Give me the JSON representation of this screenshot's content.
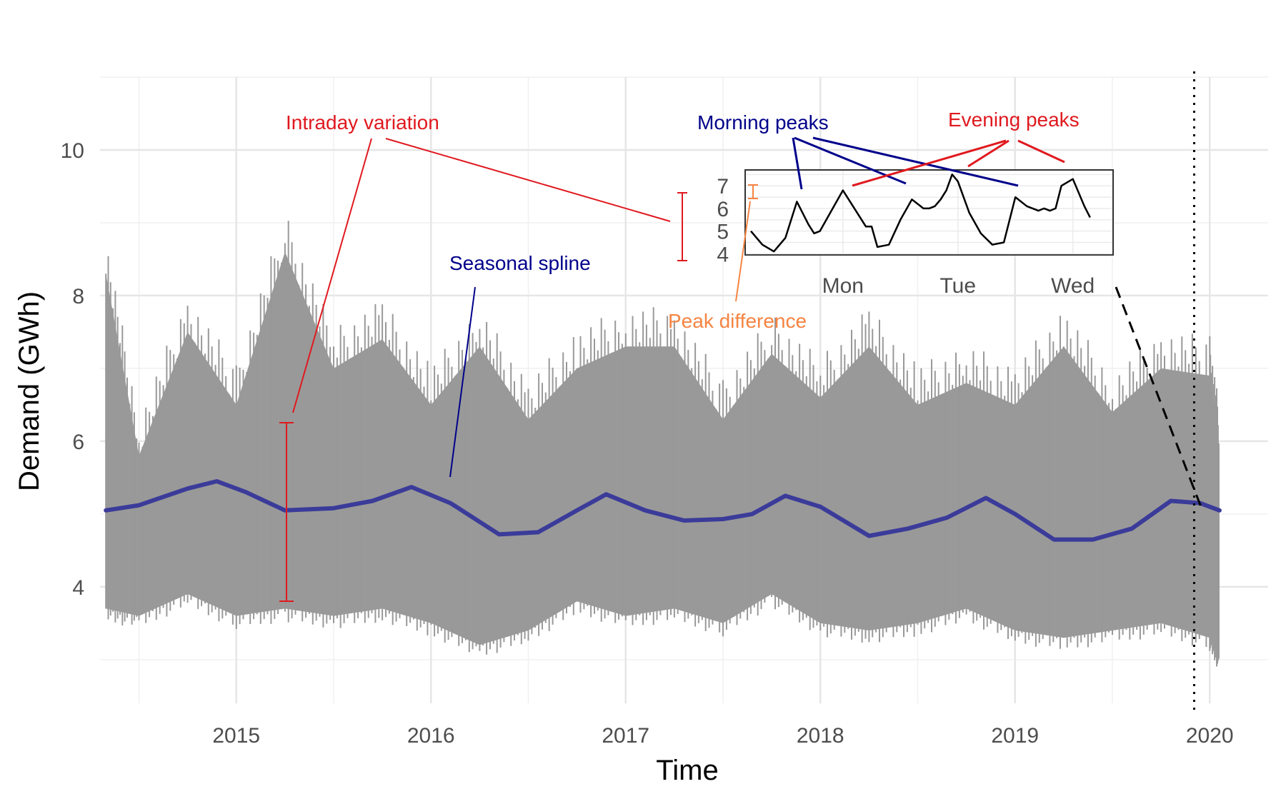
{
  "chart_data": {
    "type": "line",
    "title": "",
    "xlabel": "Time",
    "ylabel": "Demand (GWh)",
    "xlim": [
      2014.3,
      2020.3
    ],
    "ylim": [
      2.4,
      11.0
    ],
    "x_ticks": [
      2015,
      2016,
      2017,
      2018,
      2019,
      2020
    ],
    "x_tick_labels": [
      "2015",
      "2016",
      "2017",
      "2018",
      "2019",
      "2020"
    ],
    "y_ticks": [
      4,
      6,
      8,
      10
    ],
    "y_tick_labels": [
      "4",
      "6",
      "8",
      "10"
    ],
    "grid": true,
    "series": [
      {
        "type": "area",
        "color": "#999999",
        "x": [
          2014.33,
          2014.5,
          2014.75,
          2015.0,
          2015.25,
          2015.5,
          2015.75,
          2016.0,
          2016.25,
          2016.5,
          2016.75,
          2017.0,
          2017.25,
          2017.5,
          2017.75,
          2018.0,
          2018.25,
          2018.5,
          2018.75,
          2019.0,
          2019.25,
          2019.5,
          2019.75,
          2020.0,
          2020.05
        ],
        "low": [
          3.7,
          3.6,
          3.9,
          3.6,
          3.7,
          3.6,
          3.7,
          3.5,
          3.2,
          3.4,
          3.8,
          3.6,
          3.7,
          3.5,
          3.9,
          3.5,
          3.4,
          3.5,
          3.7,
          3.4,
          3.3,
          3.4,
          3.5,
          3.3,
          3.0
        ],
        "high": [
          8.3,
          5.8,
          7.5,
          6.5,
          8.6,
          7.0,
          7.4,
          6.5,
          7.3,
          6.3,
          7.0,
          7.3,
          7.3,
          6.3,
          7.2,
          6.6,
          7.3,
          6.5,
          6.8,
          6.5,
          7.3,
          6.4,
          7.0,
          6.9,
          5.9
        ]
      },
      {
        "type": "line",
        "color": "#3b3b9a",
        "x": [
          2014.33,
          2014.5,
          2014.75,
          2014.9,
          2015.05,
          2015.25,
          2015.5,
          2015.7,
          2015.9,
          2016.1,
          2016.35,
          2016.55,
          2016.75,
          2016.9,
          2017.1,
          2017.3,
          2017.5,
          2017.65,
          2017.82,
          2018.0,
          2018.25,
          2018.45,
          2018.65,
          2018.85,
          2019.0,
          2019.2,
          2019.4,
          2019.6,
          2019.8,
          2019.95,
          2020.05
        ],
        "y": [
          5.05,
          5.12,
          5.35,
          5.45,
          5.3,
          5.05,
          5.08,
          5.18,
          5.37,
          5.15,
          4.72,
          4.75,
          5.05,
          5.27,
          5.05,
          4.91,
          4.93,
          5.0,
          5.25,
          5.1,
          4.7,
          4.8,
          4.95,
          5.22,
          5.0,
          4.65,
          4.65,
          4.8,
          5.18,
          5.15,
          5.05
        ]
      }
    ],
    "vline_x": 2019.92,
    "inset": {
      "x_tick_labels": [
        "Mon",
        "Tue",
        "Wed"
      ],
      "y_tick_labels": [
        "4",
        "5",
        "6",
        "7"
      ],
      "xlim": [
        -0.85,
        2.35
      ],
      "ylim": [
        3.95,
        7.7
      ],
      "x": [
        -0.8,
        -0.7,
        -0.6,
        -0.5,
        -0.4,
        -0.3,
        -0.25,
        -0.2,
        -0.1,
        0.0,
        0.1,
        0.2,
        0.25,
        0.3,
        0.4,
        0.5,
        0.6,
        0.7,
        0.75,
        0.8,
        0.85,
        0.9,
        0.95,
        1.0,
        1.1,
        1.2,
        1.3,
        1.4,
        1.5,
        1.6,
        1.7,
        1.75,
        1.8,
        1.85,
        1.9,
        2.0,
        2.1,
        2.15
      ],
      "y": [
        5.0,
        4.4,
        4.1,
        4.7,
        6.3,
        5.3,
        4.9,
        5.0,
        5.9,
        6.8,
        6.0,
        5.2,
        5.2,
        4.3,
        4.4,
        5.5,
        6.4,
        6.0,
        6.0,
        6.1,
        6.4,
        6.8,
        7.5,
        7.2,
        5.8,
        4.9,
        4.4,
        4.5,
        6.5,
        6.1,
        5.9,
        6.0,
        5.9,
        6.0,
        7.0,
        7.3,
        6.1,
        5.6
      ]
    },
    "annotations": [
      {
        "text": "Intraday variation",
        "color": "#e0191f"
      },
      {
        "text": "Seasonal  spline",
        "color": "#00008b"
      },
      {
        "text": "Morning peaks",
        "color": "#00008b"
      },
      {
        "text": "Evening peaks",
        "color": "#e0191f"
      },
      {
        "text": "Peak difference",
        "color": "#f58442"
      }
    ]
  }
}
